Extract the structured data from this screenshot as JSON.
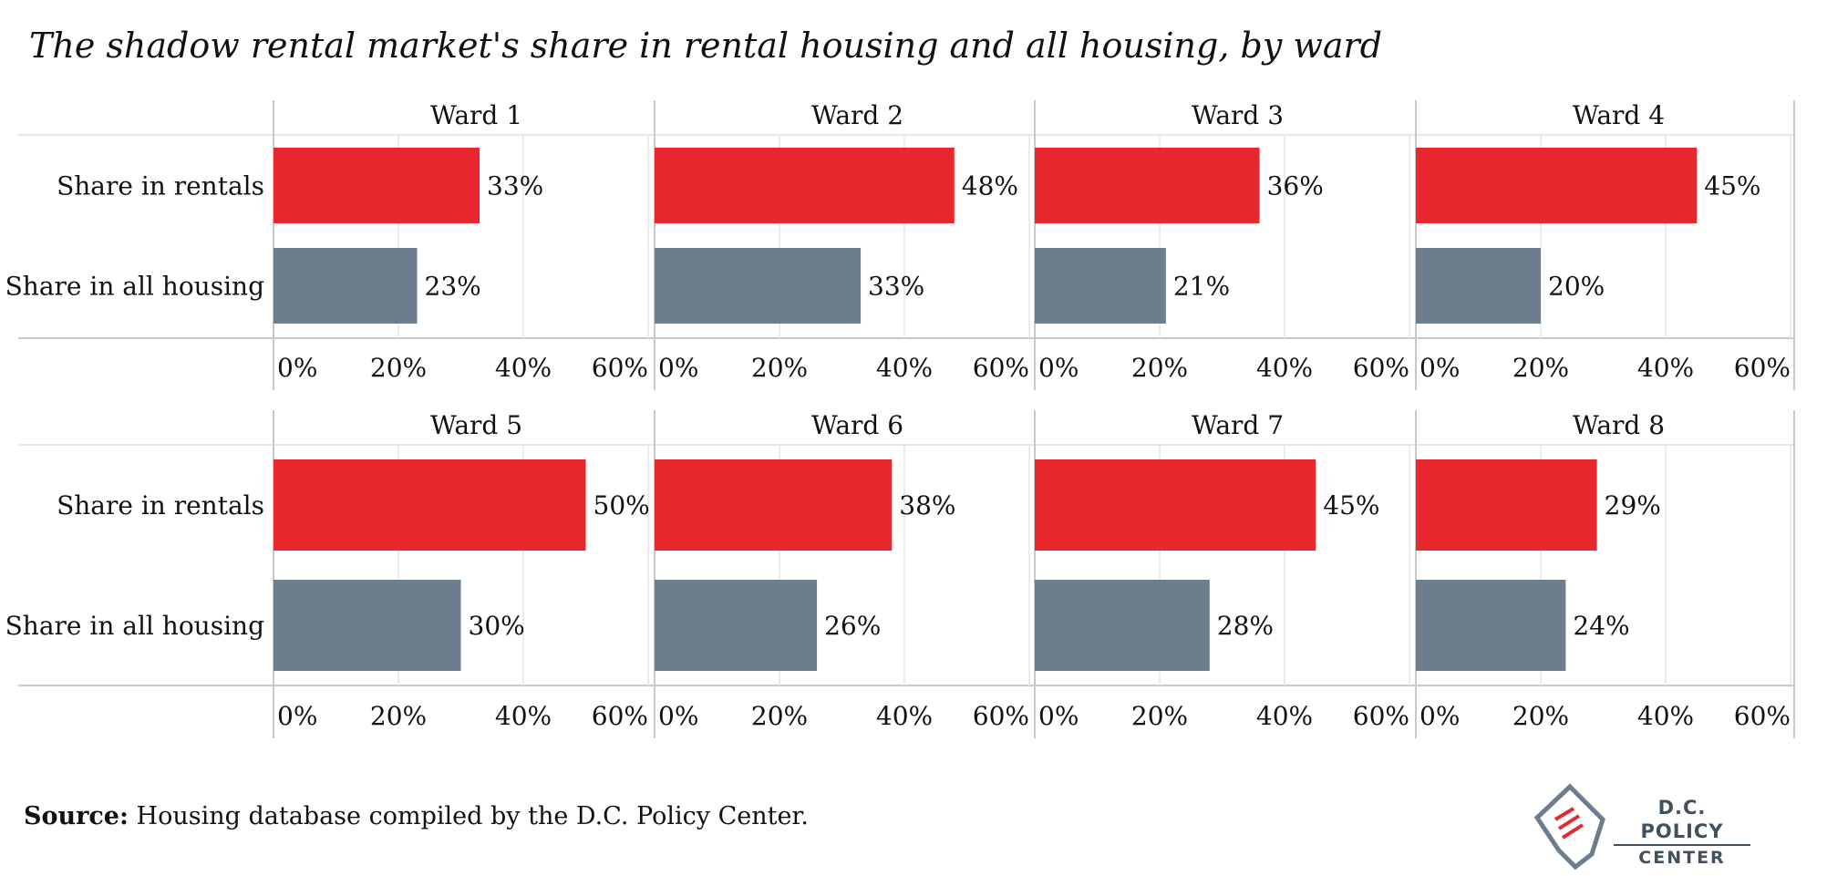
{
  "title": "The shadow rental market's share in rental housing and all housing, by ward",
  "colors": {
    "rentals": "#e8282e",
    "all_housing": "#6e7d8b",
    "grid": "#e6e6e6",
    "axis": "#c8c8c8"
  },
  "chart_data": {
    "type": "bar",
    "orientation": "horizontal",
    "categories": [
      "Share in rentals",
      "Share in all housing"
    ],
    "xlim": [
      0,
      60
    ],
    "xticks": [
      0,
      20,
      40,
      60
    ],
    "tick_suffix": "%",
    "panels": [
      {
        "name": "Ward 1",
        "values": [
          33,
          23
        ]
      },
      {
        "name": "Ward 2",
        "values": [
          48,
          33
        ]
      },
      {
        "name": "Ward 3",
        "values": [
          36,
          21
        ]
      },
      {
        "name": "Ward 4",
        "values": [
          45,
          20
        ]
      },
      {
        "name": "Ward 5",
        "values": [
          50,
          30
        ]
      },
      {
        "name": "Ward 6",
        "values": [
          38,
          26
        ]
      },
      {
        "name": "Ward 7",
        "values": [
          45,
          28
        ]
      },
      {
        "name": "Ward 8",
        "values": [
          29,
          24
        ]
      }
    ]
  },
  "footer": {
    "source_label": "Source:",
    "source_text": " Housing database compiled by the D.C. Policy Center."
  },
  "logo": {
    "line1": "D.C. POLICY",
    "line2": "CENTER"
  }
}
